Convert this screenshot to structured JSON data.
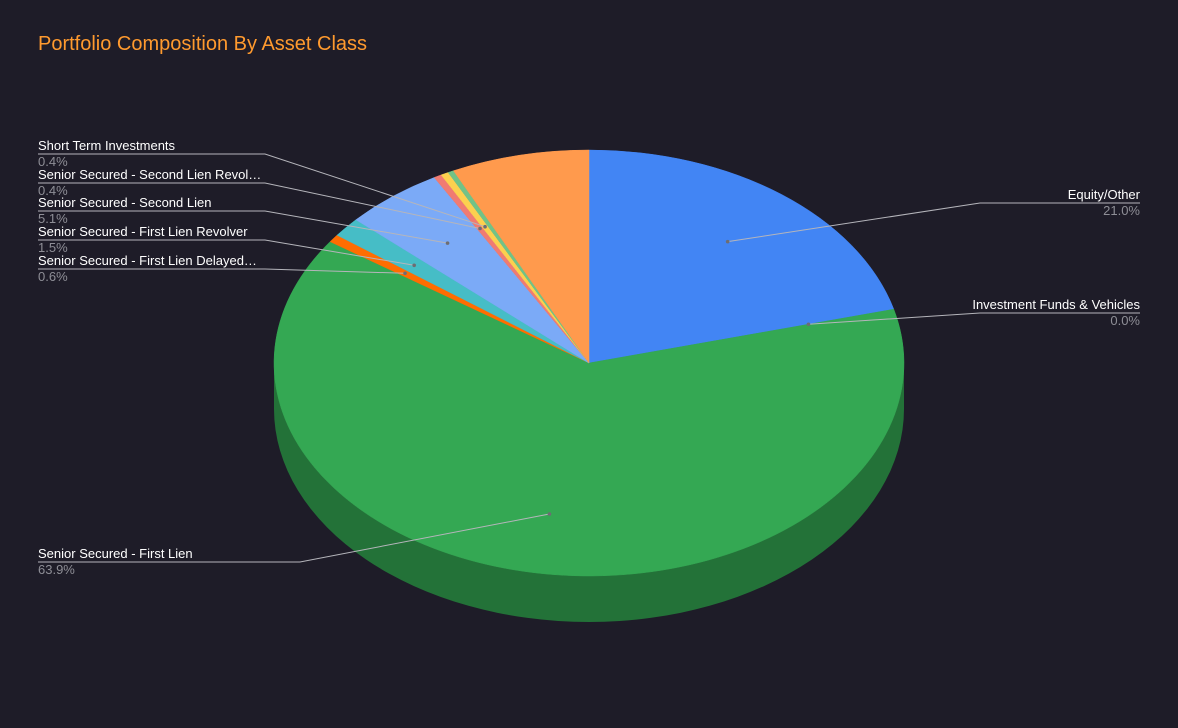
{
  "chart_data": {
    "type": "pie",
    "style": "3d",
    "title": "Portfolio Composition By Asset Class",
    "slices": [
      {
        "label": "Equity/Other",
        "value": 21.0,
        "pct_label": "21.0%",
        "color": "#4285f4",
        "label_side": "right"
      },
      {
        "label": "Investment Funds & Vehicles",
        "value": 0.0,
        "pct_label": "0.0%",
        "color": "#9aa0a6",
        "label_side": "right"
      },
      {
        "label": "Senior Secured - First Lien",
        "value": 63.9,
        "pct_label": "63.9%",
        "color": "#34a853",
        "label_side": "left"
      },
      {
        "label": "Senior Secured - First Lien Delayed…",
        "value": 0.6,
        "pct_label": "0.6%",
        "color": "#ff6d01",
        "label_side": "left"
      },
      {
        "label": "Senior Secured - First Lien Revolver",
        "value": 1.5,
        "pct_label": "1.5%",
        "color": "#46bdc6",
        "label_side": "left"
      },
      {
        "label": "Senior Secured - Second Lien",
        "value": 5.1,
        "pct_label": "5.1%",
        "color": "#7baaf7",
        "label_side": "left"
      },
      {
        "label": "Senior Secured - Second Lien Revol…",
        "value": 0.4,
        "pct_label": "0.4%",
        "color": "#f07b72",
        "label_side": "left"
      },
      {
        "label": "Short Term Investments",
        "value": 0.4,
        "pct_label": "0.4%",
        "color": "#fcd04f",
        "label_side": "left"
      },
      {
        "label": "",
        "value": 0.3,
        "pct_label": "",
        "color": "#71c287",
        "label_side": "none"
      },
      {
        "label": "",
        "value": 7.1,
        "pct_label": "",
        "color": "#ff9a4d",
        "label_side": "none"
      }
    ],
    "colors": {
      "background": "#1e1c28",
      "title": "#ff9a2e",
      "label": "#ffffff",
      "percent": "#8e8e96",
      "leader": "#b5b5bb"
    }
  }
}
